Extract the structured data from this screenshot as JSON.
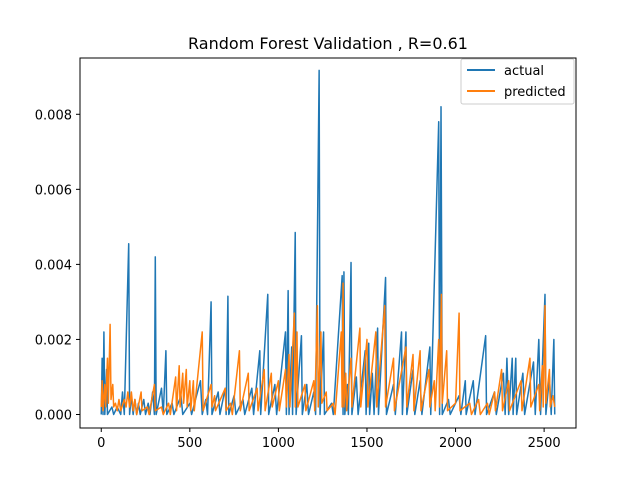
{
  "chart_data": {
    "type": "line",
    "title": "Random Forest Validation , R=0.61",
    "xlabel": "",
    "ylabel": "",
    "xlim": [
      -120,
      2680
    ],
    "ylim": [
      -0.00036,
      0.0095
    ],
    "x_ticks": [
      0,
      500,
      1000,
      1500,
      2000,
      2500
    ],
    "x_tick_labels": [
      "0",
      "500",
      "1000",
      "1500",
      "2000",
      "2500"
    ],
    "y_ticks": [
      0.0,
      0.002,
      0.004,
      0.006,
      0.008
    ],
    "y_tick_labels": [
      "0.000",
      "0.002",
      "0.004",
      "0.006",
      "0.008"
    ],
    "grid": false,
    "legend": {
      "position": "top-right"
    },
    "series": [
      {
        "name": "actual",
        "color": "#1f77b4",
        "points": [
          [
            0,
            0
          ],
          [
            5,
            0.0015
          ],
          [
            10,
            0
          ],
          [
            15,
            0.0022
          ],
          [
            20,
            0
          ],
          [
            30,
            0.0012
          ],
          [
            35,
            0
          ],
          [
            60,
            0.0002
          ],
          [
            70,
            0
          ],
          [
            90,
            0.0002
          ],
          [
            110,
            0
          ],
          [
            120,
            0.0006
          ],
          [
            130,
            0
          ],
          [
            155,
            0.00455
          ],
          [
            160,
            0
          ],
          [
            170,
            0.0005
          ],
          [
            180,
            0
          ],
          [
            190,
            0.0004
          ],
          [
            200,
            0
          ],
          [
            210,
            0.0003
          ],
          [
            220,
            0
          ],
          [
            240,
            0.0004
          ],
          [
            250,
            0
          ],
          [
            265,
            0.0003
          ],
          [
            275,
            0
          ],
          [
            290,
            0.0006
          ],
          [
            300,
            0
          ],
          [
            305,
            0.0042
          ],
          [
            310,
            0
          ],
          [
            340,
            0.0007
          ],
          [
            350,
            0
          ],
          [
            365,
            0.0017
          ],
          [
            370,
            0
          ],
          [
            400,
            0.0003
          ],
          [
            410,
            0
          ],
          [
            450,
            0.0005
          ],
          [
            460,
            0
          ],
          [
            500,
            0.0003
          ],
          [
            510,
            0
          ],
          [
            560,
            0.0009
          ],
          [
            570,
            0
          ],
          [
            590,
            0.0004
          ],
          [
            600,
            0
          ],
          [
            620,
            0.003
          ],
          [
            625,
            0
          ],
          [
            660,
            0.0006
          ],
          [
            670,
            0
          ],
          [
            700,
            0.0007
          ],
          [
            705,
            0
          ],
          [
            715,
            0.00315
          ],
          [
            720,
            0
          ],
          [
            750,
            0.0005
          ],
          [
            760,
            0
          ],
          [
            800,
            0.0004
          ],
          [
            810,
            0
          ],
          [
            850,
            0.0007
          ],
          [
            860,
            0
          ],
          [
            895,
            0.0017
          ],
          [
            900,
            0
          ],
          [
            940,
            0.0032
          ],
          [
            945,
            0
          ],
          [
            980,
            0.0008
          ],
          [
            990,
            0
          ],
          [
            1040,
            0.0022
          ],
          [
            1045,
            0
          ],
          [
            1055,
            0.0033
          ],
          [
            1060,
            0
          ],
          [
            1075,
            0.0018
          ],
          [
            1080,
            0
          ],
          [
            1095,
            0.00485
          ],
          [
            1100,
            0
          ],
          [
            1130,
            0.0021
          ],
          [
            1135,
            0
          ],
          [
            1160,
            0.0008
          ],
          [
            1170,
            0
          ],
          [
            1200,
            0.0006
          ],
          [
            1210,
            0
          ],
          [
            1230,
            0.00917
          ],
          [
            1235,
            0
          ],
          [
            1255,
            0.0022
          ],
          [
            1260,
            0
          ],
          [
            1300,
            0.0003
          ],
          [
            1310,
            0
          ],
          [
            1360,
            0.0037
          ],
          [
            1365,
            0
          ],
          [
            1370,
            0.0038
          ],
          [
            1375,
            0
          ],
          [
            1390,
            0.0008
          ],
          [
            1395,
            0
          ],
          [
            1410,
            0.00405
          ],
          [
            1415,
            0
          ],
          [
            1440,
            0.001
          ],
          [
            1450,
            0
          ],
          [
            1490,
            0.0017
          ],
          [
            1495,
            0
          ],
          [
            1510,
            0.0019
          ],
          [
            1515,
            0
          ],
          [
            1530,
            0.0011
          ],
          [
            1540,
            0
          ],
          [
            1560,
            0.0023
          ],
          [
            1565,
            0
          ],
          [
            1605,
            0.00365
          ],
          [
            1610,
            0
          ],
          [
            1650,
            0.0008
          ],
          [
            1660,
            0
          ],
          [
            1695,
            0.0022
          ],
          [
            1700,
            0
          ],
          [
            1720,
            0.0022
          ],
          [
            1725,
            0
          ],
          [
            1760,
            0.0012
          ],
          [
            1770,
            0
          ],
          [
            1800,
            0.0009
          ],
          [
            1810,
            0
          ],
          [
            1855,
            0.0018
          ],
          [
            1860,
            0
          ],
          [
            1905,
            0.0078
          ],
          [
            1910,
            0
          ],
          [
            1918,
            0.0082
          ],
          [
            1925,
            0
          ],
          [
            1960,
            0.0004
          ],
          [
            1970,
            0
          ],
          [
            2020,
            0.0005
          ],
          [
            2030,
            0
          ],
          [
            2055,
            0.0009
          ],
          [
            2060,
            0
          ],
          [
            2100,
            0.0009
          ],
          [
            2110,
            0
          ],
          [
            2170,
            0.0021
          ],
          [
            2175,
            0
          ],
          [
            2220,
            0.0006
          ],
          [
            2230,
            0
          ],
          [
            2270,
            0.0011
          ],
          [
            2280,
            0
          ],
          [
            2290,
            0.0015
          ],
          [
            2300,
            0
          ],
          [
            2320,
            0.0015
          ],
          [
            2325,
            0
          ],
          [
            2340,
            0.0015
          ],
          [
            2345,
            0
          ],
          [
            2380,
            0.0011
          ],
          [
            2390,
            0
          ],
          [
            2440,
            0.0014
          ],
          [
            2450,
            0
          ],
          [
            2470,
            0.002
          ],
          [
            2480,
            0
          ],
          [
            2505,
            0.0032
          ],
          [
            2510,
            0
          ],
          [
            2530,
            0.001
          ],
          [
            2540,
            0
          ],
          [
            2555,
            0.002
          ],
          [
            2560,
            0
          ]
        ]
      },
      {
        "name": "predicted",
        "color": "#ff7f0e",
        "points": [
          [
            0,
            0.0002
          ],
          [
            5,
            0.0009
          ],
          [
            10,
            0.0001
          ],
          [
            20,
            0.0008
          ],
          [
            25,
            0.0002
          ],
          [
            35,
            0.0015
          ],
          [
            40,
            0.0003
          ],
          [
            50,
            0.0024
          ],
          [
            55,
            0.0004
          ],
          [
            65,
            0.0008
          ],
          [
            70,
            0.0002
          ],
          [
            80,
            0.0003
          ],
          [
            90,
            0.0001
          ],
          [
            100,
            0.0004
          ],
          [
            110,
            0.0001
          ],
          [
            130,
            0.0004
          ],
          [
            140,
            0.0002
          ],
          [
            150,
            0.0006
          ],
          [
            160,
            0.0002
          ],
          [
            170,
            0.0006
          ],
          [
            180,
            0.0001
          ],
          [
            190,
            0.0004
          ],
          [
            200,
            0
          ],
          [
            225,
            0.0006
          ],
          [
            230,
            0.0001
          ],
          [
            260,
            0.0002
          ],
          [
            270,
            0
          ],
          [
            300,
            0.0008
          ],
          [
            305,
            0.0001
          ],
          [
            340,
            0.0002
          ],
          [
            350,
            0
          ],
          [
            380,
            0.0003
          ],
          [
            390,
            0
          ],
          [
            420,
            0.001
          ],
          [
            425,
            0.0001
          ],
          [
            440,
            0.0013
          ],
          [
            445,
            0.0002
          ],
          [
            460,
            0.0011
          ],
          [
            465,
            0.0003
          ],
          [
            480,
            0.0012
          ],
          [
            485,
            0.0002
          ],
          [
            500,
            0.0009
          ],
          [
            505,
            0.0001
          ],
          [
            520,
            0.0009
          ],
          [
            525,
            0.0001
          ],
          [
            570,
            0.0022
          ],
          [
            575,
            0.0001
          ],
          [
            620,
            0.0008
          ],
          [
            625,
            0.0002
          ],
          [
            640,
            0.0005
          ],
          [
            645,
            0.0001
          ],
          [
            700,
            0.0007
          ],
          [
            705,
            0.0001
          ],
          [
            730,
            0.0003
          ],
          [
            740,
            0
          ],
          [
            780,
            0.0017
          ],
          [
            785,
            0.0001
          ],
          [
            830,
            0.0011
          ],
          [
            835,
            0.0001
          ],
          [
            880,
            0.0007
          ],
          [
            885,
            0.0001
          ],
          [
            920,
            0.0012
          ],
          [
            925,
            0.0001
          ],
          [
            960,
            0.0011
          ],
          [
            965,
            0.0002
          ],
          [
            1000,
            0.0009
          ],
          [
            1005,
            0.0001
          ],
          [
            1040,
            0.0012
          ],
          [
            1045,
            0.0002
          ],
          [
            1060,
            0.0016
          ],
          [
            1065,
            0.0002
          ],
          [
            1090,
            0.0027
          ],
          [
            1095,
            0.0002
          ],
          [
            1105,
            0.0022
          ],
          [
            1110,
            0.0002
          ],
          [
            1150,
            0.0008
          ],
          [
            1155,
            0.0001
          ],
          [
            1200,
            0.0009
          ],
          [
            1205,
            0.0001
          ],
          [
            1220,
            0.0029
          ],
          [
            1225,
            0.0002
          ],
          [
            1240,
            0.0022
          ],
          [
            1245,
            0.0003
          ],
          [
            1270,
            0.0006
          ],
          [
            1275,
            0.0001
          ],
          [
            1310,
            0.0003
          ],
          [
            1320,
            0
          ],
          [
            1355,
            0.0022
          ],
          [
            1360,
            0.0002
          ],
          [
            1365,
            0.0035
          ],
          [
            1370,
            0.0002
          ],
          [
            1380,
            0.0011
          ],
          [
            1385,
            0.0001
          ],
          [
            1410,
            0.0015
          ],
          [
            1415,
            0.0002
          ],
          [
            1460,
            0.0023
          ],
          [
            1465,
            0.0002
          ],
          [
            1500,
            0.002
          ],
          [
            1505,
            0.0002
          ],
          [
            1550,
            0.0022
          ],
          [
            1555,
            0.0002
          ],
          [
            1600,
            0.0029
          ],
          [
            1605,
            0.0002
          ],
          [
            1650,
            0.0015
          ],
          [
            1655,
            0.0001
          ],
          [
            1720,
            0.0018
          ],
          [
            1725,
            0.0002
          ],
          [
            1760,
            0.0016
          ],
          [
            1765,
            0.0001
          ],
          [
            1800,
            0.0017
          ],
          [
            1805,
            0.0001
          ],
          [
            1850,
            0.0012
          ],
          [
            1855,
            0.0002
          ],
          [
            1880,
            0.0009
          ],
          [
            1885,
            0.0001
          ],
          [
            1905,
            0.002
          ],
          [
            1910,
            0.0002
          ],
          [
            1920,
            0.0032
          ],
          [
            1925,
            0.0003
          ],
          [
            1950,
            0.0017
          ],
          [
            1955,
            0.0001
          ],
          [
            2000,
            0.0003
          ],
          [
            2020,
            0.0027
          ],
          [
            2025,
            0.0001
          ],
          [
            2080,
            0.0003
          ],
          [
            2090,
            0
          ],
          [
            2130,
            0.0004
          ],
          [
            2140,
            0
          ],
          [
            2180,
            0.0003
          ],
          [
            2190,
            0
          ],
          [
            2220,
            0.0006
          ],
          [
            2225,
            0.0001
          ],
          [
            2260,
            0.0012
          ],
          [
            2265,
            0.0001
          ],
          [
            2300,
            0.0009
          ],
          [
            2305,
            0.0001
          ],
          [
            2370,
            0.0009
          ],
          [
            2375,
            0.0001
          ],
          [
            2420,
            0.0015
          ],
          [
            2425,
            0.0002
          ],
          [
            2470,
            0.0008
          ],
          [
            2475,
            0.0001
          ],
          [
            2490,
            0.0013
          ],
          [
            2495,
            0.0002
          ],
          [
            2505,
            0.0029
          ],
          [
            2510,
            0.0003
          ],
          [
            2530,
            0.0012
          ],
          [
            2535,
            0.0002
          ],
          [
            2550,
            0.0005
          ],
          [
            2560,
            0.0002
          ]
        ]
      }
    ]
  }
}
